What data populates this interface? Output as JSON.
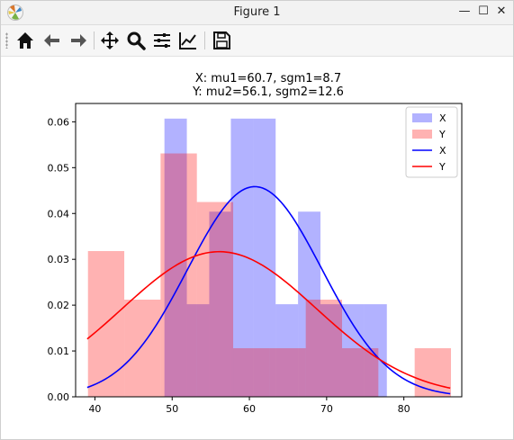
{
  "window": {
    "title": "Figure 1",
    "controls": {
      "minimize": "—",
      "maximize": "☐",
      "close": "✕"
    }
  },
  "toolbar": {
    "buttons": [
      "home-icon",
      "back-arrow-icon",
      "forward-arrow-icon",
      "pan-icon",
      "zoom-icon",
      "configure-subplots-icon",
      "edit-axes-icon",
      "save-icon"
    ]
  },
  "chart_data": {
    "type": "bar",
    "title": "X:  mu1=60.7,  sgm1=8.7\nY:  mu2=56.1,  sgm2=12.6",
    "title_lines": [
      "X:  mu1=60.7,  sgm1=8.7",
      "Y:  mu2=56.1,  sgm2=12.6"
    ],
    "xlabel": "",
    "ylabel": "",
    "xlim": [
      37.5,
      87.5
    ],
    "ylim": [
      0,
      0.064
    ],
    "xticks": [
      40,
      50,
      60,
      70,
      80
    ],
    "yticks": [
      0.0,
      0.01,
      0.02,
      0.03,
      0.04,
      0.05,
      0.06
    ],
    "xtick_labels": [
      "40",
      "50",
      "60",
      "70",
      "80"
    ],
    "ytick_labels": [
      "0.00",
      "0.01",
      "0.02",
      "0.03",
      "0.04",
      "0.05",
      "0.06"
    ],
    "legend_position": "upper right",
    "legend": [
      {
        "label": "X",
        "kind": "patch",
        "color": "#0000ff",
        "alpha": 0.3
      },
      {
        "label": "Y",
        "kind": "patch",
        "color": "#ff0000",
        "alpha": 0.3
      },
      {
        "label": "X",
        "kind": "line",
        "color": "#0000ff"
      },
      {
        "label": "Y",
        "kind": "line",
        "color": "#ff0000"
      }
    ],
    "histograms": [
      {
        "name": "X",
        "color": "#0000ff",
        "alpha": 0.3,
        "bins": [
          {
            "x0": 49.0,
            "x1": 51.9,
            "density": 0.0607
          },
          {
            "x0": 51.9,
            "x1": 54.8,
            "density": 0.0202
          },
          {
            "x0": 54.8,
            "x1": 57.6,
            "density": 0.0404
          },
          {
            "x0": 57.6,
            "x1": 60.5,
            "density": 0.0607
          },
          {
            "x0": 60.5,
            "x1": 63.4,
            "density": 0.0607
          },
          {
            "x0": 63.4,
            "x1": 66.3,
            "density": 0.0202
          },
          {
            "x0": 66.3,
            "x1": 69.2,
            "density": 0.0404
          },
          {
            "x0": 69.2,
            "x1": 72.0,
            "density": 0.0202
          },
          {
            "x0": 72.0,
            "x1": 74.9,
            "density": 0.0202
          },
          {
            "x0": 74.9,
            "x1": 77.8,
            "density": 0.0202
          }
        ]
      },
      {
        "name": "Y",
        "color": "#ff0000",
        "alpha": 0.3,
        "bins": [
          {
            "x0": 39.1,
            "x1": 43.8,
            "density": 0.0318
          },
          {
            "x0": 43.8,
            "x1": 48.5,
            "density": 0.0212
          },
          {
            "x0": 48.5,
            "x1": 53.2,
            "density": 0.0531
          },
          {
            "x0": 53.2,
            "x1": 57.9,
            "density": 0.0425
          },
          {
            "x0": 57.9,
            "x1": 62.6,
            "density": 0.0106
          },
          {
            "x0": 62.6,
            "x1": 67.3,
            "density": 0.0106
          },
          {
            "x0": 67.3,
            "x1": 72.0,
            "density": 0.0212
          },
          {
            "x0": 72.0,
            "x1": 76.7,
            "density": 0.0106
          },
          {
            "x0": 76.7,
            "x1": 81.4,
            "density": 0.0
          },
          {
            "x0": 81.4,
            "x1": 86.1,
            "density": 0.0106
          }
        ]
      }
    ],
    "curves": [
      {
        "name": "X",
        "color": "#0000ff",
        "mu": 60.7,
        "sigma": 8.7,
        "x_range": [
          39.0,
          86.0
        ]
      },
      {
        "name": "Y",
        "color": "#ff0000",
        "mu": 56.1,
        "sigma": 12.6,
        "x_range": [
          39.0,
          86.0
        ]
      }
    ]
  }
}
